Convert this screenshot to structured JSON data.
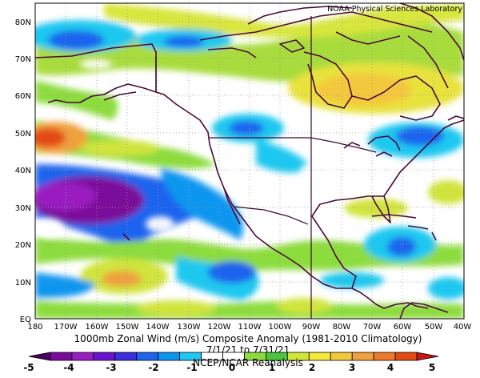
{
  "credit": "NOAA Physical Sciences Laboratory",
  "title": "1000mb Zonal Wind (m/s) Composite Anomaly (1981-2010 Climatology)",
  "date_range": "7/1/21 to 7/31/21",
  "source": "NCEP/NCAR Reanalysis",
  "x_ticks": [
    "180",
    "170W",
    "160W",
    "150W",
    "140W",
    "130W",
    "120W",
    "110W",
    "100W",
    "90W",
    "80W",
    "70W",
    "60W",
    "50W",
    "40W"
  ],
  "y_ticks": [
    "EQ",
    "10N",
    "20N",
    "30N",
    "40N",
    "50N",
    "60N",
    "70N",
    "80N"
  ],
  "colorbar": {
    "labels": [
      "-5",
      "-4",
      "-3",
      "-2",
      "-1",
      "0",
      "1",
      "2",
      "3",
      "4",
      "5"
    ],
    "colors": [
      "#4a0060",
      "#7a0a9a",
      "#9a1ec0",
      "#6a14d0",
      "#3a2ee0",
      "#1e64ee",
      "#0a96f0",
      "#1ec8f0",
      "#ffffff",
      "#ffffff",
      "#8cdc3c",
      "#4ac43c",
      "#d0e43c",
      "#f4e83c",
      "#f4c83c",
      "#f0a03c",
      "#f07a28",
      "#e44a14",
      "#c81414"
    ]
  },
  "chart_data": {
    "type": "heatmap",
    "variable": "1000mb Zonal Wind (m/s) Composite Anomaly (1981-2010 Climatology)",
    "period": "7/1/21 to 7/31/21",
    "lon_range": [
      -180,
      -40
    ],
    "lat_range": [
      0,
      85
    ],
    "color_scale_range": [
      -5,
      5
    ],
    "features": [
      {
        "lon": -170,
        "lat": 48,
        "value": 5
      },
      {
        "lon": -160,
        "lat": 49,
        "value": 3
      },
      {
        "lon": -165,
        "lat": 30,
        "value": -4
      },
      {
        "lon": -150,
        "lat": 28,
        "value": -4
      },
      {
        "lon": -120,
        "lat": 38,
        "value": -2
      },
      {
        "lon": -160,
        "lat": 73,
        "value": -3
      },
      {
        "lon": -135,
        "lat": 73,
        "value": -2
      },
      {
        "lon": -105,
        "lat": 52,
        "value": -2
      },
      {
        "lon": -150,
        "lat": 12,
        "value": 3
      },
      {
        "lon": -80,
        "lat": 62,
        "value": 3
      },
      {
        "lon": -60,
        "lat": 48,
        "value": -2
      },
      {
        "lon": -58,
        "lat": 20,
        "value": -2
      },
      {
        "lon": -103,
        "lat": 12,
        "value": -2
      }
    ]
  }
}
